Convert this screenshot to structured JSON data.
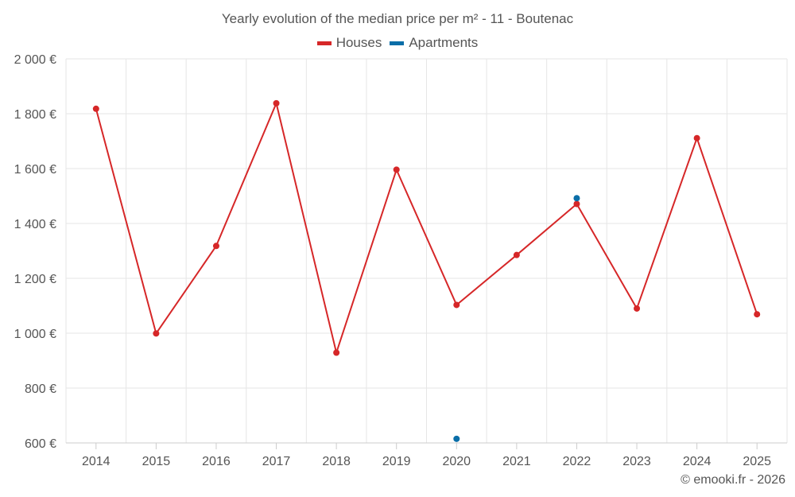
{
  "chart_data": {
    "type": "line",
    "title": "Yearly evolution of the median price per m² - 11 - Boutenac",
    "xlabel": "",
    "ylabel": "",
    "categories": [
      "2014",
      "2015",
      "2016",
      "2017",
      "2018",
      "2019",
      "2020",
      "2021",
      "2022",
      "2023",
      "2024",
      "2025"
    ],
    "ylim": [
      600,
      2000
    ],
    "yticks": [
      600,
      800,
      1000,
      1200,
      1400,
      1600,
      1800,
      2000
    ],
    "ytick_labels": [
      "600 €",
      "800 €",
      "1 000 €",
      "1 200 €",
      "1 400 €",
      "1 600 €",
      "1 800 €",
      "2 000 €"
    ],
    "grid": true,
    "legend_position": "top-center",
    "series": [
      {
        "name": "Houses",
        "color": "#d62728",
        "values": [
          1818,
          999,
          1318,
          1838,
          929,
          1596,
          1103,
          1285,
          1471,
          1090,
          1711,
          1069
        ]
      },
      {
        "name": "Apartments",
        "color": "#0a6ea8",
        "values": [
          null,
          null,
          null,
          null,
          null,
          null,
          615,
          null,
          1492,
          null,
          null,
          null
        ]
      }
    ]
  },
  "credit": "© emooki.fr - 2026"
}
